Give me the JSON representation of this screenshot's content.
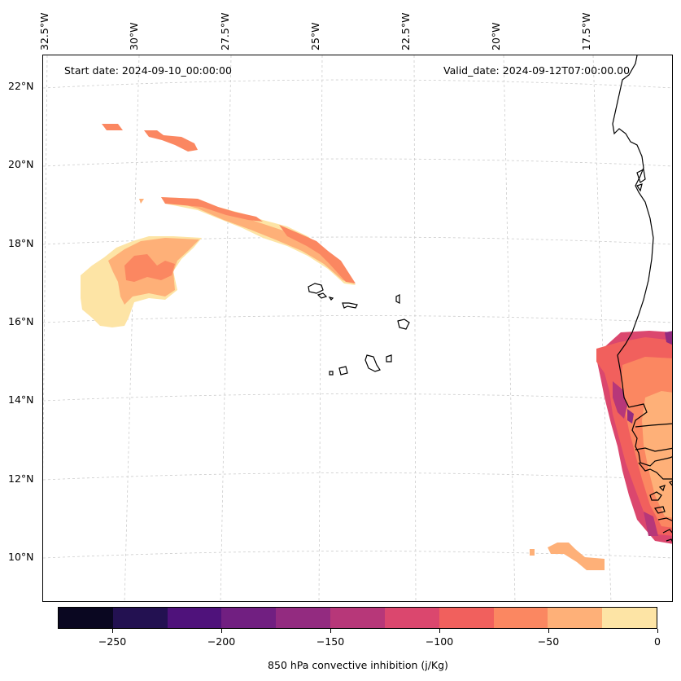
{
  "map": {
    "start_date": "Start date: 2024-09-10_00:00:00",
    "valid_date": "Valid_date: 2024-09-12T07:00:00.00",
    "lon_labels": [
      "32.5°W",
      "30°W",
      "27.5°W",
      "25°W",
      "22.5°W",
      "20°W",
      "17.5°W"
    ],
    "lat_labels": [
      "22°N",
      "20°N",
      "18°N",
      "16°N",
      "14°N",
      "12°N",
      "10°N"
    ],
    "variable": "850 hPa convective inhibition",
    "units": "j/Kg"
  },
  "colorbar": {
    "title": "850 hPa convective inhibition (j/Kg)",
    "tick_labels": [
      "−250",
      "−200",
      "−150",
      "−100",
      "−50",
      "0"
    ],
    "tick_values": [
      -250,
      -200,
      -150,
      -100,
      -50,
      0
    ],
    "range": [
      -275,
      0
    ],
    "levels": [
      -275,
      -250,
      -225,
      -200,
      -175,
      -150,
      -125,
      -100,
      -75,
      -50,
      -25,
      0
    ],
    "colors": [
      "#0a0721",
      "#231151",
      "#4f127b",
      "#711f81",
      "#932b80",
      "#b73779",
      "#db476e",
      "#f1605d",
      "#fb8761",
      "#feb078",
      "#fde4a5"
    ]
  },
  "legend_colors": {
    "coastline": "#000000",
    "gridline": "#cccccc"
  }
}
